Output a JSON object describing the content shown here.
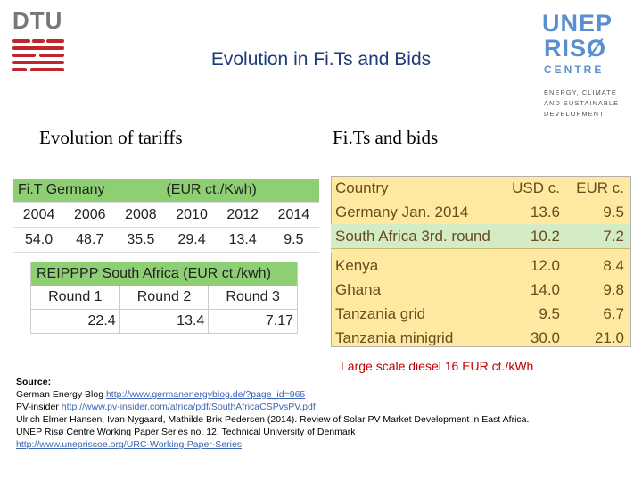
{
  "header": {
    "dtu_text": "DTU",
    "title": "Evolution in Fi.Ts and Bids",
    "unep_line1": "UNEP",
    "unep_line2": "RISØ",
    "unep_line3": "CENTRE",
    "unep_tag1": "ENERGY, CLIMATE",
    "unep_tag2": "AND SUSTAINABLE",
    "unep_tag3": "DEVELOPMENT"
  },
  "left": {
    "heading": "Evolution of tariffs",
    "fit_table": {
      "title": "Fi.T Germany",
      "unit": "(EUR ct./Kwh)",
      "years": [
        "2004",
        "2006",
        "2008",
        "2010",
        "2012",
        "2014"
      ],
      "values": [
        "54.0",
        "48.7",
        "35.5",
        "29.4",
        "13.4",
        "9.5"
      ]
    },
    "reipppp_table": {
      "title": "REIPPPP South Africa (EUR ct./kwh)",
      "rounds": [
        "Round 1",
        "Round 2",
        "Round 3"
      ],
      "values": [
        "22.4",
        "13.4",
        "7.17"
      ]
    }
  },
  "right": {
    "heading": "Fi.Ts and bids",
    "bids_table": {
      "header": [
        "Country",
        "USD c.",
        "EUR c."
      ],
      "rows": [
        [
          "Germany  Jan. 2014",
          "13.6",
          "9.5"
        ],
        [
          "South Africa 3rd. round",
          "10.2",
          "7.2"
        ]
      ],
      "rows2": [
        [
          "Kenya",
          "12.0",
          "8.4"
        ],
        [
          "Ghana",
          "14.0",
          "9.8"
        ],
        [
          "Tanzania  grid",
          "9.5",
          "6.7"
        ],
        [
          "Tanzania  minigrid",
          "30.0",
          "21.0"
        ]
      ]
    },
    "diesel_note": "Large scale diesel   16 EUR ct./kWh"
  },
  "source": {
    "label": "Source:",
    "line1_text": "German Energy Blog ",
    "line1_link": "http://www.germanenergyblog.de/?page_id=965",
    "line2_text": "PV-insider  ",
    "line2_link": "http://www.pv-insider.com/africa/pdf/SouthAfricaCSPvsPV.pdf",
    "line3": "Ulrich Elmer Hansen, Ivan Nygaard,  Mathilde Brix Pedersen (2014). Review of Solar PV Market Development in East Africa.",
    "line4": "UNEP Risø Centre Working Paper Series no. 12.  Technical University of Denmark",
    "line5_link": "http://www.unepriscoe.org/URC-Working-Paper-Series"
  }
}
